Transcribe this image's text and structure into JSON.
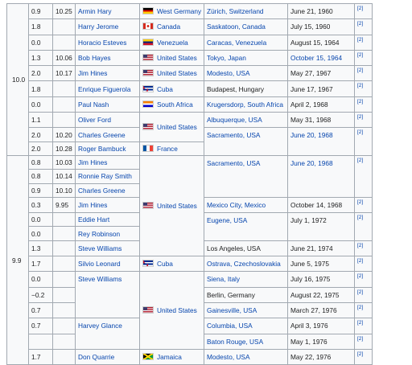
{
  "table": {
    "groups": [
      "10.0",
      "9.9"
    ],
    "rows": [
      {
        "wind": "0.9",
        "auto": "10.25",
        "athlete": "Armin Hary",
        "country": "West Germany",
        "location": "Zürich, Switzerland",
        "date": "June 21, 1960",
        "ref": "[2]"
      },
      {
        "wind": "1.8",
        "athlete": "Harry Jerome",
        "country": "Canada",
        "location": "Saskatoon, Canada",
        "date": "July 15, 1960",
        "ref": "[2]"
      },
      {
        "wind": "0.0",
        "athlete": "Horacio Esteves",
        "country": "Venezuela",
        "location": "Caracas, Venezuela",
        "date": "August 15, 1964",
        "ref": "[2]"
      },
      {
        "wind": "1.3",
        "auto": "10.06",
        "athlete": "Bob Hayes",
        "country": "United States",
        "location": "Tokyo, Japan",
        "date": "October 15, 1964",
        "ref": "[2]"
      },
      {
        "wind": "2.0",
        "auto": "10.17",
        "athlete": "Jim Hines",
        "country": "United States",
        "location": "Modesto, USA",
        "date": "May 27, 1967",
        "ref": "[2]"
      },
      {
        "wind": "1.8",
        "athlete": "Enrique Figuerola",
        "country": "Cuba",
        "location": "Budapest, Hungary",
        "date": "June 17, 1967",
        "ref": "[2]"
      },
      {
        "wind": "0.0",
        "athlete": "Paul Nash",
        "country": "South Africa",
        "location": "Krugersdorp, South Africa",
        "date": "April 2, 1968",
        "ref": "[2]"
      },
      {
        "wind": "1.1",
        "athlete": "Oliver Ford",
        "country": "United States",
        "location": "Albuquerque, USA",
        "date": "May 31, 1968",
        "ref": "[2]"
      },
      {
        "wind": "2.0",
        "auto": "10.20",
        "athlete": "Charles Greene",
        "location": "Sacramento, USA",
        "date": "June 20, 1968",
        "ref": "[2]"
      },
      {
        "wind": "2.0",
        "auto": "10.28",
        "athlete": "Roger Bambuck",
        "country": "France"
      },
      {
        "wind": "0.8",
        "auto": "10.03",
        "athlete": "Jim Hines",
        "country": "United States",
        "location": "Sacramento, USA",
        "date": "June 20, 1968",
        "ref": "[2]"
      },
      {
        "wind": "0.8",
        "auto": "10.14",
        "athlete": "Ronnie Ray Smith"
      },
      {
        "wind": "0.9",
        "auto": "10.10",
        "athlete": "Charles Greene"
      },
      {
        "wind": "0.3",
        "auto": "9.95",
        "athlete": "Jim Hines",
        "location": "Mexico City, Mexico",
        "date": "October 14, 1968",
        "ref": "[2]"
      },
      {
        "wind": "0.0",
        "athlete": "Eddie Hart",
        "location": "Eugene, USA",
        "date": "July 1, 1972",
        "ref": "[2]"
      },
      {
        "wind": "0.0",
        "athlete": "Rey Robinson"
      },
      {
        "wind": "1.3",
        "athlete": "Steve Williams",
        "location": "Los Angeles, USA",
        "date": "June 21, 1974",
        "ref": "[2]"
      },
      {
        "wind": "1.7",
        "athlete": "Silvio Leonard",
        "country": "Cuba",
        "location": "Ostrava, Czechoslovakia",
        "date": "June 5, 1975",
        "ref": "[2]"
      },
      {
        "wind": "0.0",
        "athlete": "Steve Williams",
        "country": "United States",
        "location": "Siena, Italy",
        "date": "July 16, 1975",
        "ref": "[2]"
      },
      {
        "wind": "−0.2",
        "location": "Berlin, Germany",
        "date": "August 22, 1975",
        "ref": "[2]"
      },
      {
        "wind": "0.7",
        "location": "Gainesville, USA",
        "date": "March 27, 1976",
        "ref": "[2]"
      },
      {
        "wind": "0.7",
        "athlete": "Harvey Glance",
        "location": "Columbia, USA",
        "date": "April 3, 1976",
        "ref": "[2]"
      },
      {
        "location": "Baton Rouge, USA",
        "date": "May 1, 1976",
        "ref": "[2]"
      },
      {
        "wind": "1.7",
        "athlete": "Don Quarrie",
        "country": "Jamaica",
        "location": "Modesto, USA",
        "date": "May 22, 1976",
        "ref": "[2]"
      }
    ]
  }
}
